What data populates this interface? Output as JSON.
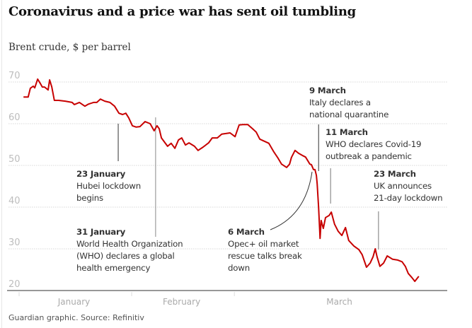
{
  "chart_data": {
    "type": "line",
    "title": "Coronavirus and a price war has sent oil tumbling",
    "subtitle": "Brent crude, $ per barrel",
    "xlabel": "",
    "ylabel": "Brent crude, $ per barrel",
    "x_units": "trading-time index (days from 1 Jan, approx.)",
    "xlim": [
      0,
      118
    ],
    "ylim": [
      20,
      72
    ],
    "yticks": [
      20,
      30,
      40,
      50,
      60,
      70
    ],
    "ytick_labels": [
      "20",
      "30",
      "40",
      "50",
      "60",
      "70"
    ],
    "grid": true,
    "month_ticks": [
      0,
      31,
      59.3
    ],
    "month_labels": [
      {
        "label": "January",
        "start": 0,
        "end": 31
      },
      {
        "label": "February",
        "start": 31,
        "end": 59.3
      },
      {
        "label": "March",
        "start": 59.3,
        "end": 118
      }
    ],
    "series": [
      {
        "name": "Brent crude",
        "color": "#c70000",
        "x": [
          1.2,
          2.5,
          3.1,
          3.9,
          4.3,
          5.1,
          5.8,
          6.4,
          7.0,
          8.0,
          8.4,
          9.0,
          9.7,
          10.9,
          12.7,
          14.6,
          15.2,
          16.6,
          18.1,
          19.1,
          20.5,
          21.4,
          22.4,
          23.6,
          25.0,
          26.3,
          27.5,
          28.5,
          29.4,
          30.2,
          31.2,
          32.2,
          33.3,
          34.7,
          36.1,
          37.2,
          38.0,
          38.6,
          39.2,
          40.9,
          41.9,
          42.9,
          43.9,
          44.8,
          45.8,
          46.8,
          48.3,
          49.3,
          50.7,
          52.2,
          53.2,
          54.6,
          55.8,
          58.1,
          59.5,
          60.6,
          61.6,
          63.0,
          64.3,
          65.3,
          66.3,
          67.3,
          68.8,
          70.2,
          71.2,
          72.3,
          73.7,
          74.5,
          75.0,
          76.0,
          77.0,
          78.0,
          78.9,
          80.1,
          80.5,
          81.1,
          81.5,
          81.9,
          82.1,
          82.5,
          82.9,
          83.2,
          83.8,
          84.4,
          85.4,
          86.0,
          86.9,
          87.9,
          88.9,
          89.9,
          90.8,
          92.2,
          93.6,
          94.5,
          95.7,
          96.7,
          97.5,
          98.1,
          98.6,
          99.4,
          100.4,
          101.4,
          102.9,
          104.3,
          105.5,
          106.4,
          107.2,
          108.2,
          109.0,
          110.1
        ],
        "values": [
          66.4,
          66.4,
          68.5,
          69.0,
          68.6,
          70.7,
          69.7,
          68.8,
          68.8,
          68.1,
          70.5,
          68.8,
          65.6,
          65.6,
          65.4,
          65.1,
          64.6,
          65.1,
          64.2,
          64.7,
          65.1,
          65.1,
          65.9,
          65.4,
          65.1,
          64.2,
          62.5,
          62.2,
          62.5,
          61.4,
          59.5,
          59.2,
          59.3,
          60.5,
          60.0,
          58.3,
          59.5,
          58.8,
          56.6,
          54.6,
          55.3,
          54.1,
          56.1,
          56.6,
          54.9,
          55.4,
          54.6,
          53.6,
          54.4,
          55.4,
          56.6,
          56.6,
          57.5,
          57.8,
          56.9,
          59.7,
          59.8,
          59.8,
          58.8,
          58.0,
          56.3,
          55.9,
          55.3,
          53.2,
          51.9,
          50.3,
          49.5,
          50.3,
          51.9,
          53.6,
          52.9,
          52.4,
          52.0,
          50.3,
          50.2,
          49.0,
          49.0,
          47.6,
          45.6,
          40.0,
          32.5,
          36.8,
          34.9,
          37.5,
          38.0,
          38.8,
          35.9,
          34.2,
          33.2,
          35.1,
          32.0,
          30.7,
          29.8,
          28.6,
          25.6,
          26.6,
          28.1,
          30.0,
          28.1,
          25.8,
          26.6,
          28.3,
          27.5,
          27.3,
          26.9,
          25.8,
          24.1,
          23.1,
          22.2,
          23.4
        ]
      }
    ],
    "annotations": [
      {
        "date": "23 January",
        "lines": [
          "Hubei lockdown",
          "begins"
        ],
        "x": 27.3
      },
      {
        "date": "31 January",
        "lines": [
          "World Health Organization",
          "(WHO) declares a global",
          "health emergency"
        ],
        "x": 37.6
      },
      {
        "date": "6 March",
        "lines": [
          "Opec+ oil market",
          "rescue talks break",
          "down"
        ],
        "x": 80.7
      },
      {
        "date": "9 March",
        "lines": [
          "Italy declares a",
          "national quarantine"
        ],
        "x": 82.5
      },
      {
        "date": "11 March",
        "lines": [
          "WHO declares Covid-19",
          "outbreak a pandemic"
        ],
        "x": 85.8
      },
      {
        "date": "23 March",
        "lines": [
          "UK announces",
          "21-day lockdown"
        ],
        "x": 99.0
      }
    ],
    "source": "Guardian graphic. Source: Refinitiv"
  }
}
